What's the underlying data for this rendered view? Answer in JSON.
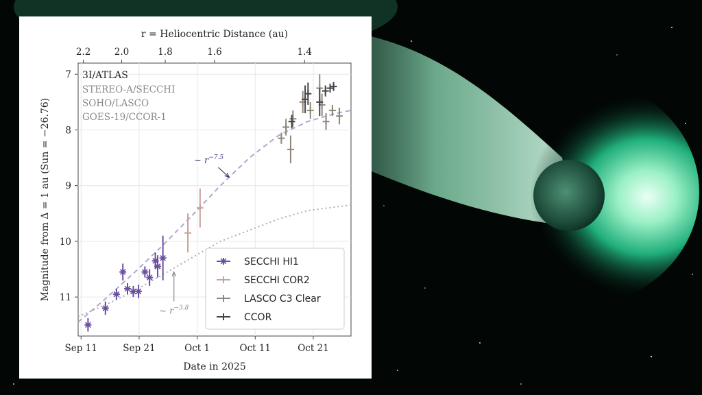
{
  "chart_data": {
    "type": "scatter",
    "title": "",
    "object_label": "3I/ATLAS",
    "instrument_labels": [
      "STEREO-A/SECCHI",
      "SOHO/LASCO",
      "GOES-19/CCOR-1"
    ],
    "xlabel": "Date in 2025",
    "ylabel": "Magnitude from Δ = 1 au (Sun = −26.76)",
    "top_axis_label": "r = Heliocentric Distance (au)",
    "top_ticks": [
      {
        "label": "2.2",
        "day": 11.4
      },
      {
        "label": "2.0",
        "day": 18.0
      },
      {
        "label": "1.8",
        "day": 25.5
      },
      {
        "label": "1.6",
        "day": 34.0
      },
      {
        "label": "1.4",
        "day": 49.5
      }
    ],
    "x_ticks": [
      {
        "label": "Sep 11",
        "day": 11
      },
      {
        "label": "Sep 21",
        "day": 21
      },
      {
        "label": "Oct 1",
        "day": 31
      },
      {
        "label": "Oct 11",
        "day": 41
      },
      {
        "label": "Oct 21",
        "day": 51
      }
    ],
    "x_range_days_after_aug31": [
      10.5,
      57.5
    ],
    "y_ticks": [
      7,
      8,
      9,
      10,
      11
    ],
    "ylim": [
      11.7,
      6.8
    ],
    "y_inverted": true,
    "grid": true,
    "legend_position": "lower-right",
    "series": [
      {
        "name": "SECCHI HI1",
        "color": "#6b4fa0",
        "marker": "asterisk",
        "points": [
          [
            12.2,
            11.5,
            0.12
          ],
          [
            15.2,
            11.2,
            0.12
          ],
          [
            17.1,
            10.95,
            0.1
          ],
          [
            18.2,
            10.55,
            0.15
          ],
          [
            19.0,
            10.85,
            0.1
          ],
          [
            20.0,
            10.9,
            0.1
          ],
          [
            20.9,
            10.9,
            0.12
          ],
          [
            22.0,
            10.55,
            0.1
          ],
          [
            22.8,
            10.65,
            0.15
          ],
          [
            23.8,
            10.35,
            0.15
          ],
          [
            24.2,
            10.45,
            0.2
          ],
          [
            25.1,
            10.3,
            0.4
          ]
        ]
      },
      {
        "name": "SECCHI COR2",
        "color": "#c9a09a",
        "marker": "plus",
        "points": [
          [
            29.4,
            9.85,
            0.35
          ],
          [
            31.5,
            9.4,
            0.35
          ]
        ]
      },
      {
        "name": "LASCO C3 Clear",
        "color": "#8f877a",
        "marker": "plus",
        "points": [
          [
            45.5,
            8.15,
            0.1
          ],
          [
            46.3,
            7.95,
            0.15
          ],
          [
            47.1,
            8.35,
            0.25
          ],
          [
            47.5,
            7.8,
            0.15
          ],
          [
            49.2,
            7.5,
            0.2
          ],
          [
            50.5,
            7.65,
            0.15
          ],
          [
            52.1,
            7.25,
            0.25
          ],
          [
            52.5,
            7.55,
            0.2
          ],
          [
            53.2,
            7.85,
            0.15
          ],
          [
            54.3,
            7.65,
            0.1
          ],
          [
            55.5,
            7.75,
            0.15
          ]
        ]
      },
      {
        "name": "CCOR",
        "color": "#444444",
        "marker": "plus",
        "points": [
          [
            47.3,
            7.85,
            0.12
          ],
          [
            49.6,
            7.45,
            0.25
          ],
          [
            50.1,
            7.35,
            0.2
          ],
          [
            52.1,
            7.5,
            0.25
          ],
          [
            53.1,
            7.3,
            0.1
          ],
          [
            53.9,
            7.25,
            0.08
          ],
          [
            54.5,
            7.22,
            0.08
          ]
        ]
      }
    ],
    "model_curves": [
      {
        "label": "~ r −7.5",
        "power": "−7.5",
        "style": "dashed",
        "color": "#aea7cf",
        "points": [
          [
            10.5,
            11.45
          ],
          [
            15,
            11.05
          ],
          [
            20,
            10.58
          ],
          [
            25,
            10.08
          ],
          [
            30,
            9.55
          ],
          [
            35,
            9.0
          ],
          [
            40,
            8.5
          ],
          [
            45,
            8.1
          ],
          [
            50,
            7.85
          ],
          [
            55,
            7.7
          ],
          [
            57.5,
            7.65
          ]
        ]
      },
      {
        "label": "~ r −3.8",
        "power": "−3.8",
        "style": "dotted",
        "color": "#b0a8b8",
        "points": [
          [
            10.5,
            11.35
          ],
          [
            15,
            11.15
          ],
          [
            20,
            10.9
          ],
          [
            25,
            10.6
          ],
          [
            30,
            10.3
          ],
          [
            35,
            10.0
          ],
          [
            40,
            9.8
          ],
          [
            45,
            9.6
          ],
          [
            50,
            9.45
          ],
          [
            55,
            9.38
          ],
          [
            57.5,
            9.35
          ]
        ]
      }
    ],
    "annotations": [
      {
        "text": "~ r",
        "sup": "−7.5",
        "points_to": [
          36.5,
          8.85
        ],
        "label_at": [
          33.0,
          8.55
        ],
        "color": "#3a3a7a"
      },
      {
        "text": "~ r",
        "sup": "−3.8",
        "points_to": [
          27.0,
          10.55
        ],
        "label_at": [
          27.0,
          11.25
        ],
        "color": "#888888"
      }
    ]
  }
}
